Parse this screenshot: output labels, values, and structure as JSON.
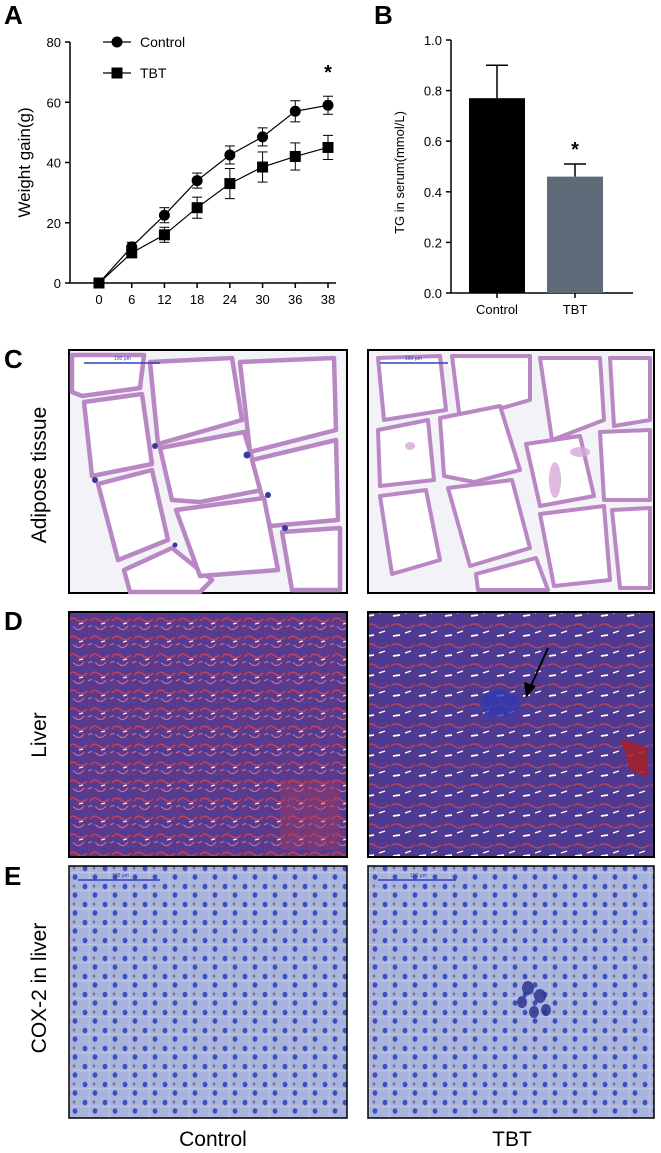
{
  "panels": {
    "a": "A",
    "b": "B",
    "c": "C",
    "d": "D",
    "e": "E"
  },
  "chart_data": [
    {
      "type": "line",
      "panel": "A",
      "title": "",
      "xlabel": "",
      "ylabel": "Weight gain(g)",
      "x": [
        0,
        6,
        12,
        18,
        24,
        30,
        36,
        38
      ],
      "x_tick_labels": [
        "0",
        "6",
        "12",
        "18",
        "24",
        "30",
        "36",
        "38"
      ],
      "y_ticks": [
        "0",
        "20",
        "40",
        "60",
        "80"
      ],
      "ylim": [
        0,
        80
      ],
      "grid": false,
      "legend_placement": "top-left",
      "series": [
        {
          "name": "Control",
          "marker": "circle",
          "color": "#000000",
          "values": [
            0,
            12,
            22.5,
            34,
            42.5,
            48.5,
            57,
            59
          ],
          "errors": [
            0,
            1.5,
            2.5,
            2.5,
            3,
            3,
            3.5,
            3
          ]
        },
        {
          "name": "TBT",
          "marker": "square",
          "color": "#000000",
          "values": [
            0,
            10,
            16,
            25,
            33,
            38.5,
            42,
            45
          ],
          "errors": [
            0,
            1.5,
            2.5,
            3.5,
            5,
            5,
            4.5,
            4
          ]
        }
      ],
      "annotations": [
        {
          "x": 38,
          "text": "*"
        }
      ]
    },
    {
      "type": "bar",
      "panel": "B",
      "title": "",
      "xlabel": "",
      "ylabel": "TG in serum(mmol/L)",
      "categories": [
        "Control",
        "TBT"
      ],
      "values": [
        0.77,
        0.46
      ],
      "errors": [
        0.13,
        0.05
      ],
      "colors": [
        "#000000",
        "#5f6b78"
      ],
      "y_ticks": [
        "0.0",
        "0.2",
        "0.4",
        "0.6",
        "0.8",
        "1.0"
      ],
      "ylim": [
        0,
        1.0
      ],
      "grid": false,
      "annotations": [
        {
          "category": "TBT",
          "text": "*"
        }
      ]
    }
  ],
  "histology": {
    "rows": [
      {
        "letter": "C",
        "label": "Adipose tissue"
      },
      {
        "letter": "D",
        "label": "Liver"
      },
      {
        "letter": "E",
        "label": "COX-2 in liver"
      }
    ],
    "columns": [
      "Control",
      "TBT"
    ],
    "scale_bar_text": "100 μm",
    "colors": {
      "adipose_bg": "#f3f2f7",
      "adipose_membrane": "#b987c4",
      "liver_bg": "#5a3a8c",
      "liver_red": "#c0405a",
      "cox_bg": "#a9b4dc",
      "cox_nucleus": "#3b4fbe"
    }
  }
}
